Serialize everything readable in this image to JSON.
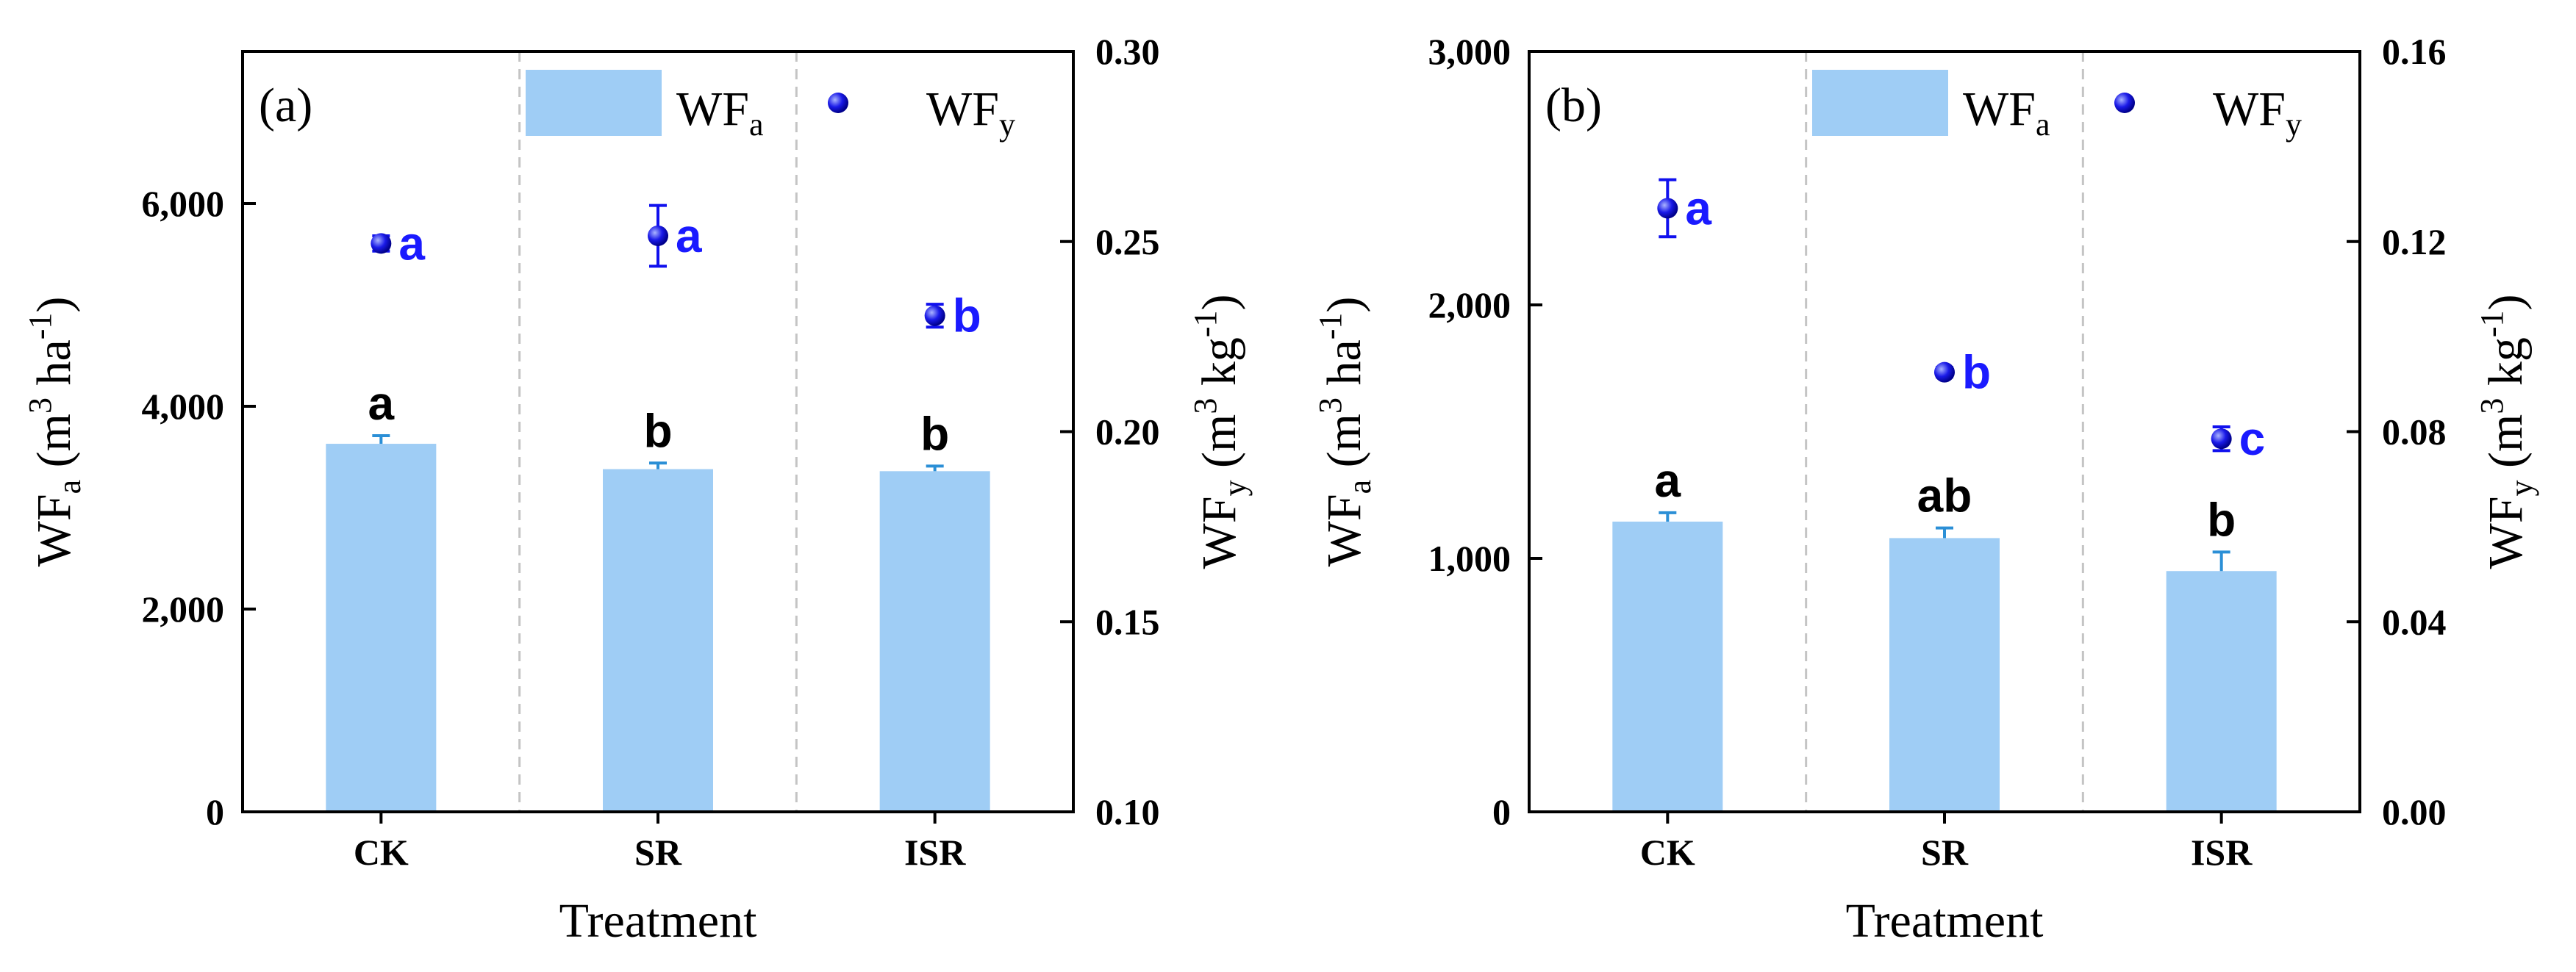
{
  "chart_data": [
    {
      "type": "bar",
      "panel_label": "(a)",
      "categories": [
        "CK",
        "SR",
        "ISR"
      ],
      "xlabel": "Treatment",
      "legend": {
        "bar": "WF",
        "bar_sub": "a",
        "point": "WF",
        "point_sub": "y"
      },
      "left_axis": {
        "label": "WF",
        "label_sub": "a",
        "unit_open": " (m",
        "unit_sup1": "3",
        "unit_mid": " ha",
        "unit_sup2": "-1",
        "unit_close": ")",
        "ylim": [
          0,
          7500
        ],
        "ticks": [
          0,
          2000,
          4000,
          6000
        ],
        "tick_labels": [
          "0",
          "2,000",
          "4,000",
          "6,000"
        ]
      },
      "right_axis": {
        "label": "WF",
        "label_sub": "y",
        "unit_open": " (m",
        "unit_sup1": "3",
        "unit_mid": " kg",
        "unit_sup2": "-1",
        "unit_close": ")",
        "ylim": [
          0.1,
          0.3
        ],
        "ticks": [
          0.1,
          0.15,
          0.2,
          0.25,
          0.3
        ],
        "tick_labels": [
          "0.10",
          "0.15",
          "0.20",
          "0.25",
          "0.30"
        ]
      },
      "series": [
        {
          "name": "WFa",
          "kind": "bar",
          "axis": "left",
          "values": [
            3630,
            3380,
            3360
          ],
          "errors": [
            80,
            60,
            50
          ],
          "letters": [
            "a",
            "b",
            "b"
          ]
        },
        {
          "name": "WFy",
          "kind": "point",
          "axis": "right",
          "values": [
            0.2495,
            0.2515,
            0.2305
          ],
          "errors": [
            0.002,
            0.008,
            0.003
          ],
          "letters": [
            "a",
            "a",
            "b"
          ]
        }
      ],
      "colors": {
        "bar": "#9fcdf5",
        "point": "#1010ee",
        "letter_point": "#1a1aff",
        "error_bar": "#2b8fd6"
      }
    },
    {
      "type": "bar",
      "panel_label": "(b)",
      "categories": [
        "CK",
        "SR",
        "ISR"
      ],
      "xlabel": "Treatment",
      "legend": {
        "bar": "WF",
        "bar_sub": "a",
        "point": "WF",
        "point_sub": "y"
      },
      "left_axis": {
        "label": "WF",
        "label_sub": "a",
        "unit_open": " (m",
        "unit_sup1": "3",
        "unit_mid": " ha",
        "unit_sup2": "-1",
        "unit_close": ")",
        "ylim": [
          0,
          3000
        ],
        "ticks": [
          0,
          1000,
          2000,
          3000
        ],
        "tick_labels": [
          "0",
          "1,000",
          "2,000",
          "3,000"
        ]
      },
      "right_axis": {
        "label": "WF",
        "label_sub": "y",
        "unit_open": " (m",
        "unit_sup1": "3",
        "unit_mid": " kg",
        "unit_sup2": "-1",
        "unit_close": ")",
        "ylim": [
          0,
          0.16
        ],
        "ticks": [
          0,
          0.04,
          0.08,
          0.12,
          0.16
        ],
        "tick_labels": [
          "0.00",
          "0.04",
          "0.08",
          "0.12",
          "0.16"
        ]
      },
      "series": [
        {
          "name": "WFa",
          "kind": "bar",
          "axis": "left",
          "values": [
            1145,
            1080,
            950
          ],
          "errors": [
            35,
            40,
            75
          ],
          "letters": [
            "a",
            "ab",
            "b"
          ]
        },
        {
          "name": "WFy",
          "kind": "point",
          "axis": "right",
          "values": [
            0.127,
            0.0925,
            0.0785
          ],
          "errors": [
            0.006,
            0.001,
            0.0025
          ],
          "letters": [
            "a",
            "b",
            "c"
          ]
        }
      ],
      "colors": {
        "bar": "#9fcdf5",
        "point": "#1010ee",
        "letter_point": "#1a1aff",
        "error_bar": "#2b8fd6"
      }
    }
  ]
}
